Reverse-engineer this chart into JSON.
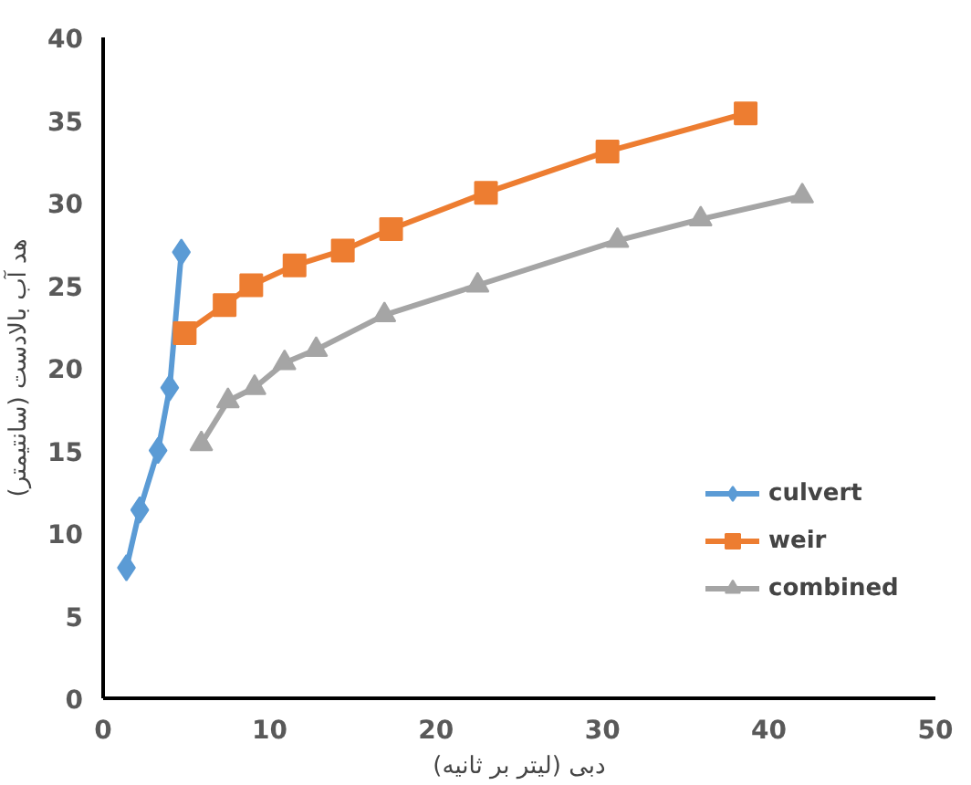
{
  "chart_data": {
    "type": "line",
    "xlabel": "دبی (لیتر بر ثانیه)",
    "ylabel": "هد آب بالادست (سانتیمتر)",
    "xlim": [
      0,
      50
    ],
    "ylim": [
      0,
      40
    ],
    "xticks": [
      0,
      10,
      20,
      30,
      40,
      50
    ],
    "yticks": [
      0,
      5,
      10,
      15,
      20,
      25,
      30,
      35,
      40
    ],
    "grid": false,
    "legend": "right",
    "line_style": "solid",
    "series": [
      {
        "name": "culvert",
        "color": "#5b9bd5",
        "marker": "diamond",
        "x": [
          1.4,
          2.2,
          3.3,
          4.0,
          4.7
        ],
        "values": [
          7.9,
          11.4,
          15.0,
          18.8,
          27.0
        ]
      },
      {
        "name": "weir",
        "color": "#ed7d31",
        "marker": "square",
        "x": [
          4.9,
          7.3,
          8.9,
          11.5,
          14.4,
          17.3,
          23.0,
          30.3,
          38.6
        ],
        "values": [
          22.1,
          23.8,
          25.0,
          26.2,
          27.1,
          28.4,
          30.6,
          33.1,
          35.4
        ]
      },
      {
        "name": "combined",
        "color": "#a5a5a5",
        "marker": "triangle",
        "x": [
          5.9,
          7.5,
          9.1,
          10.9,
          12.8,
          16.9,
          22.5,
          30.9,
          35.9,
          42.0
        ],
        "values": [
          15.4,
          18.0,
          18.8,
          20.3,
          21.1,
          23.2,
          25.0,
          27.7,
          29.0,
          30.4
        ]
      }
    ]
  }
}
